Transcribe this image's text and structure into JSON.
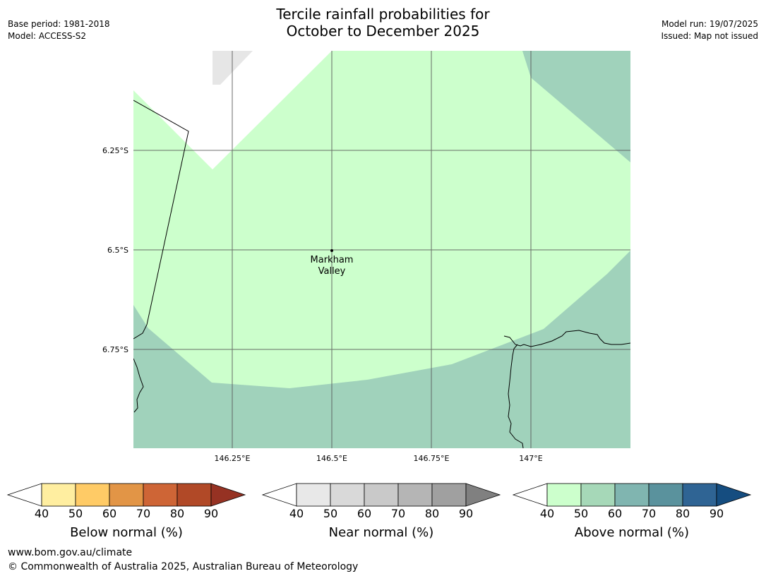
{
  "header": {
    "title_line1": "Tercile rainfall probabilities for",
    "title_line2": "October to December 2025",
    "base_period": "Base period: 1981-2018",
    "model": "Model: ACCESS-S2",
    "model_run": "Model run: 19/07/2025",
    "issued": "Issued: Map not issued"
  },
  "map": {
    "lat_labels": [
      "6.25°S",
      "6.5°S",
      "6.75°S"
    ],
    "lon_labels": [
      "146.25°E",
      "146.5°E",
      "146.75°E",
      "147°E"
    ],
    "place": {
      "name_line1": "Markham",
      "name_line2": "Valley"
    },
    "colors": {
      "above_40_50": "#ccffcc",
      "above_50_60": "#a0d2bb",
      "near_40_50": "#e6e6e6"
    }
  },
  "colorbars": [
    {
      "label": "Below normal (%)",
      "ticks": [
        "40",
        "50",
        "60",
        "70",
        "80",
        "90"
      ],
      "colors": [
        "#ffeea0",
        "#ffcb66",
        "#e29546",
        "#ce6536",
        "#b14927",
        "#963223"
      ]
    },
    {
      "label": "Near normal (%)",
      "ticks": [
        "40",
        "50",
        "60",
        "70",
        "80",
        "90"
      ],
      "colors": [
        "#e8e8e8",
        "#d9d9d9",
        "#c9c9c9",
        "#b5b5b5",
        "#a0a0a0",
        "#808080"
      ]
    },
    {
      "label": "Above normal (%)",
      "ticks": [
        "40",
        "50",
        "60",
        "70",
        "80",
        "90"
      ],
      "colors": [
        "#ccffcc",
        "#a6d8b8",
        "#80b5b0",
        "#5a929d",
        "#2f6494",
        "#154d80"
      ]
    }
  ],
  "footer": {
    "url": "www.bom.gov.au/climate",
    "copyright": "© Commonwealth of Australia 2025, Australian Bureau of Meteorology"
  }
}
